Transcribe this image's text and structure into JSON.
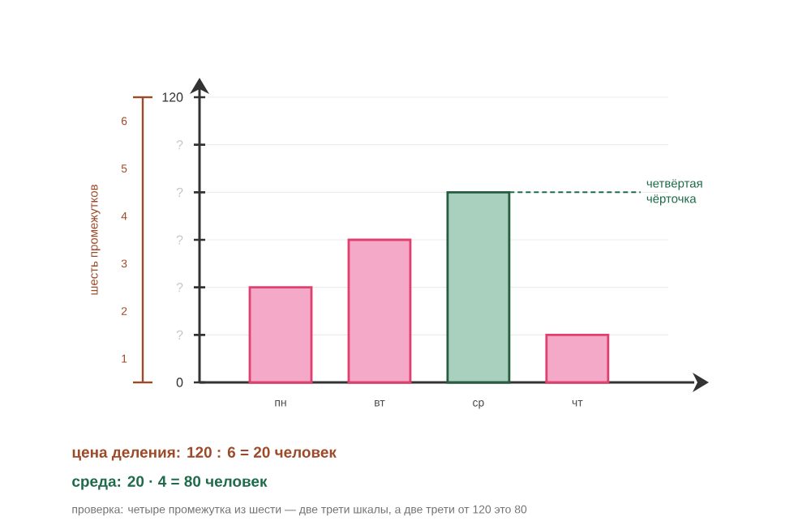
{
  "chart_data": {
    "type": "bar",
    "categories": [
      "пн",
      "вт",
      "ср",
      "чт"
    ],
    "values": [
      40,
      60,
      80,
      20
    ],
    "colors": [
      "#f5a9c8",
      "#f5a9c8",
      "#a9cfbf",
      "#f5a9c8"
    ],
    "ylim": [
      0,
      120
    ],
    "yticks": [
      0,
      {
        "value": 20,
        "label": "?"
      },
      {
        "value": 40,
        "label": "?"
      },
      {
        "value": 60,
        "label": "?"
      },
      {
        "value": 80,
        "label": "?"
      },
      {
        "value": 100,
        "label": "?"
      },
      120
    ],
    "y2lim": [
      0,
      6
    ],
    "y2ticks": [
      {
        "value": 0,
        "label": null
      },
      {
        "value": 0.5,
        "label": "1"
      },
      {
        "value": 1.5,
        "label": "2"
      },
      {
        "value": 2.5,
        "label": "3"
      },
      {
        "value": 3.5,
        "label": "4"
      },
      {
        "value": 4.5,
        "label": "5"
      },
      {
        "value": 5.5,
        "label": "6"
      },
      {
        "value": 6,
        "label": null
      }
    ],
    "y2label": "шесть промежутков",
    "grid": "y",
    "ref_lines": [
      {
        "axis": "y",
        "value": 80,
        "label": "четвёртая чёрточка",
        "color": "#1f6b4b",
        "line_style": "dashed"
      }
    ],
    "annotations": [
      "цена деления: 120 : 6 = 20 человек",
      "среда: 20 · 4 = 80 человек",
      "проверка: четыре промежутка из шести — две трети шкалы, а две трети от 120 это 80"
    ]
  }
}
